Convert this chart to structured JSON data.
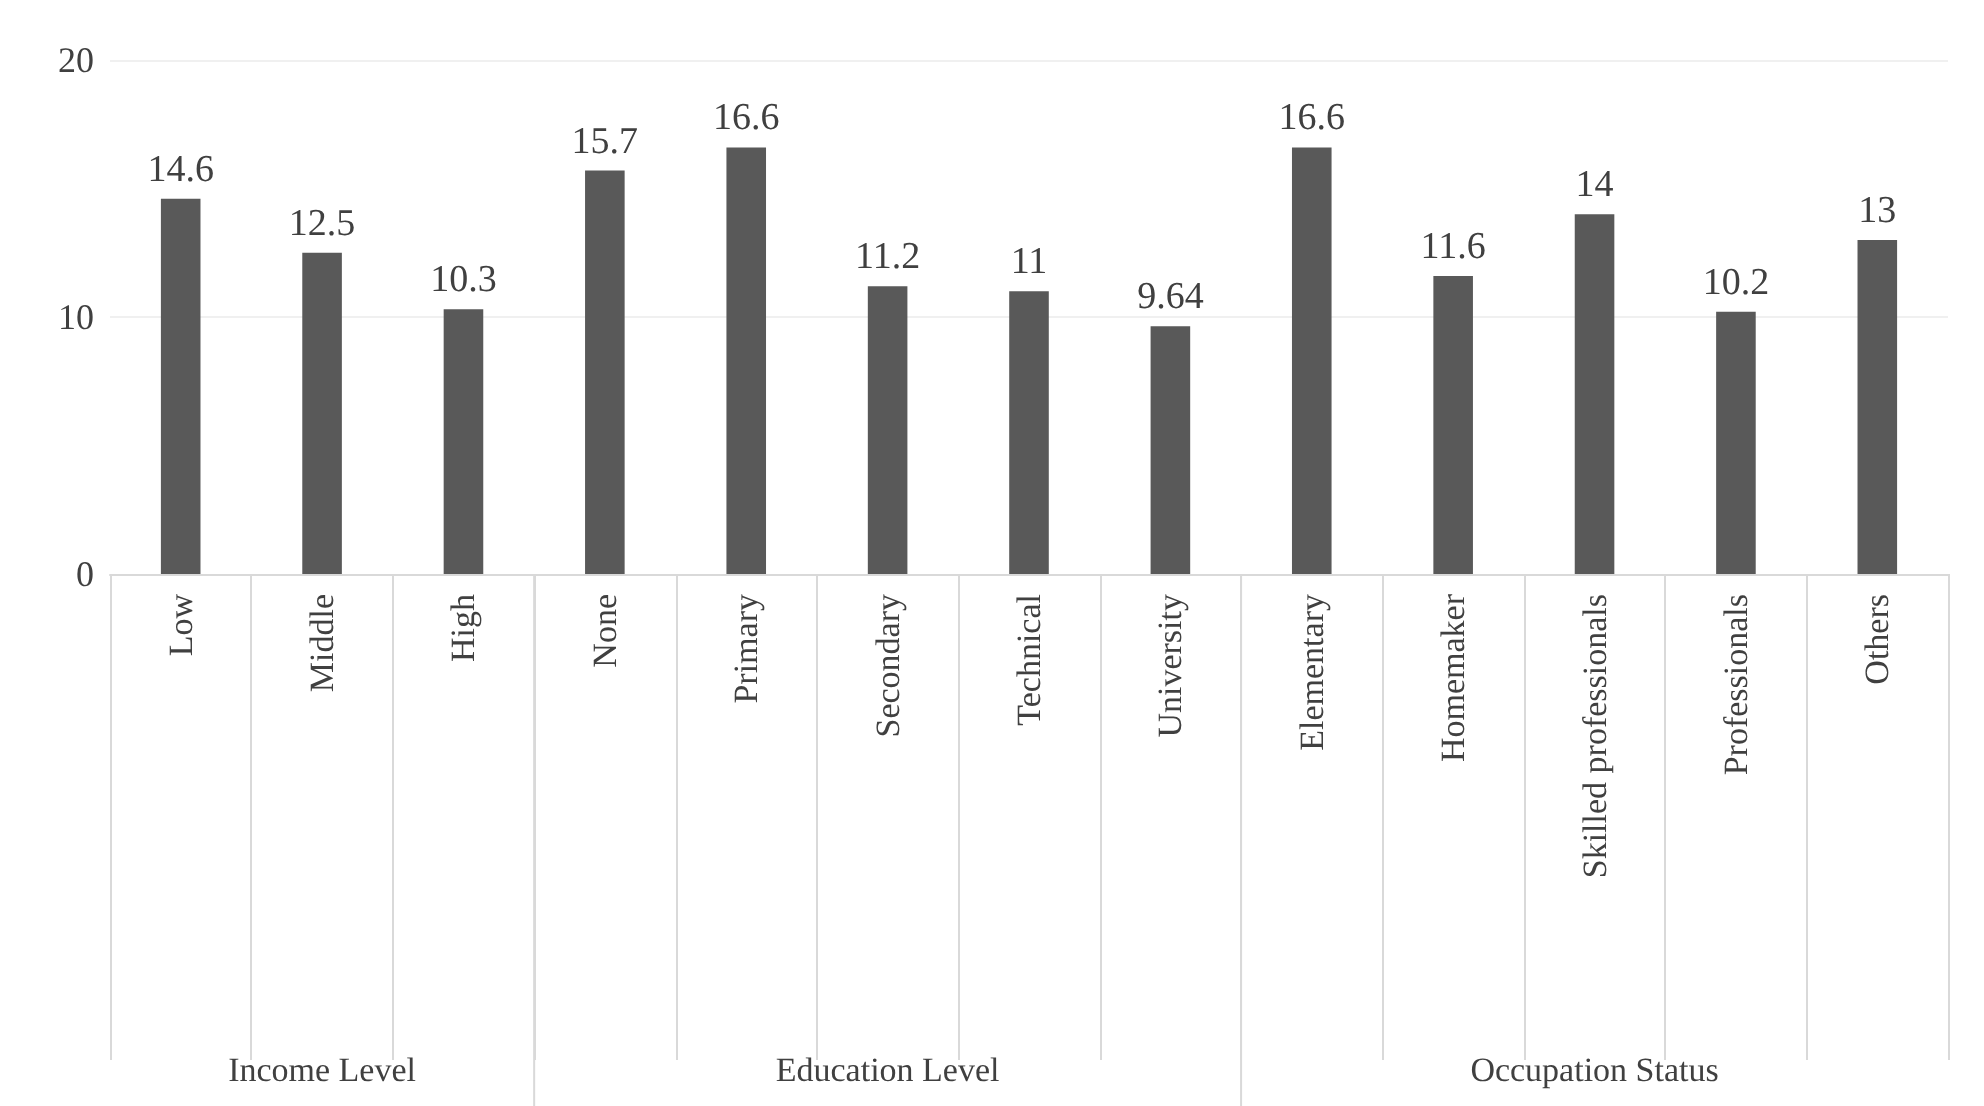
{
  "chart_data": {
    "type": "bar",
    "categories": [
      "Low",
      "Middle",
      "High",
      "None",
      "Primary",
      "Secondary",
      "Technical",
      "University",
      "Elementary",
      "Homemaker",
      "Skilled professionals",
      "Professionals",
      "Others"
    ],
    "values": [
      14.6,
      12.5,
      10.3,
      15.7,
      16.6,
      11.2,
      11,
      9.64,
      16.6,
      11.6,
      14,
      10.2,
      13
    ],
    "color": "#595959",
    "ylim": [
      0,
      20
    ],
    "yticks": [
      0,
      10,
      20
    ],
    "grid": "y",
    "data_labels": true,
    "annotations": [
      "Income Level",
      "Education Level",
      "Occupation Status"
    ]
  }
}
